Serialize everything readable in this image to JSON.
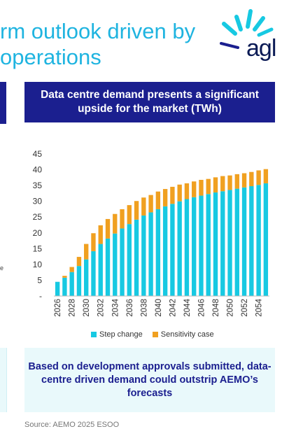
{
  "slide": {
    "title_line1": "rm outlook driven by",
    "title_line2": "operations",
    "logo_text": "agl",
    "left_fragment_text": "e",
    "source": "Source: AEMO 2025 ESOO"
  },
  "chart_header": "Data centre demand presents a significant upside for the market (TWh)",
  "callout": "Based on development approvals submitted, data-centre driven demand could outstrip AEMO’s forecasts",
  "colors": {
    "step_change": "#17c9e2",
    "sensitivity_case": "#f0a020",
    "header_bg": "#1b1f8f",
    "title": "#1fb4e0"
  },
  "chart_data": {
    "type": "bar",
    "stacked": true,
    "categories": [
      "2026",
      "2027",
      "2028",
      "2029",
      "2030",
      "2031",
      "2032",
      "2033",
      "2034",
      "2035",
      "2036",
      "2037",
      "2038",
      "2039",
      "2040",
      "2041",
      "2042",
      "2043",
      "2044",
      "2045",
      "2046",
      "2047",
      "2048",
      "2049",
      "2050",
      "2051",
      "2052",
      "2053",
      "2054",
      "2055"
    ],
    "x_tick_labels": [
      "2026",
      "2028",
      "2030",
      "2032",
      "2034",
      "2036",
      "2038",
      "2040",
      "2042",
      "2044",
      "2046",
      "2048",
      "2050",
      "2052",
      "2054"
    ],
    "series": [
      {
        "name": "Step change",
        "values": [
          4.5,
          5.8,
          7.6,
          9.5,
          11.6,
          14.2,
          16.5,
          18.2,
          19.8,
          21.4,
          22.8,
          24.2,
          25.5,
          26.5,
          27.5,
          28.4,
          29.2,
          30.0,
          30.7,
          31.3,
          31.8,
          32.3,
          32.8,
          33.2,
          33.6,
          34.0,
          34.4,
          34.8,
          35.2,
          35.7
        ]
      },
      {
        "name": "Sensitivity case",
        "values": [
          0,
          0.6,
          1.6,
          2.9,
          4.9,
          5.7,
          5.9,
          6.2,
          6.2,
          6.1,
          6.0,
          5.9,
          5.7,
          5.5,
          5.6,
          5.5,
          5.4,
          5.3,
          5.0,
          5.0,
          5.0,
          4.8,
          4.8,
          4.8,
          4.6,
          4.6,
          4.5,
          4.5,
          4.6,
          4.5
        ]
      }
    ],
    "y_ticks": [
      "45",
      "40",
      "35",
      "30",
      "25",
      "20",
      "15",
      "10",
      "5",
      "-"
    ],
    "ylim": [
      0,
      45
    ],
    "legend_position": "bottom"
  }
}
